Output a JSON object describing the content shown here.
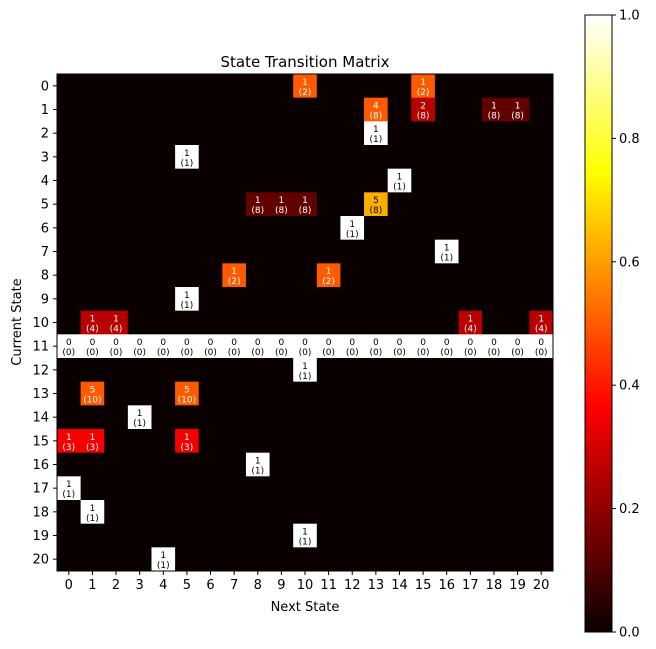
{
  "chart_data": {
    "type": "heatmap",
    "title": "State Transition Matrix",
    "xlabel": "Next State",
    "ylabel": "Current State",
    "x_categories": [
      "0",
      "1",
      "2",
      "3",
      "4",
      "5",
      "6",
      "7",
      "8",
      "9",
      "10",
      "11",
      "12",
      "13",
      "14",
      "15",
      "16",
      "17",
      "18",
      "19",
      "20"
    ],
    "y_categories": [
      "0",
      "1",
      "2",
      "3",
      "4",
      "5",
      "6",
      "7",
      "8",
      "9",
      "10",
      "11",
      "12",
      "13",
      "14",
      "15",
      "16",
      "17",
      "18",
      "19",
      "20"
    ],
    "colormap": "hot",
    "colorbar": {
      "min": 0.0,
      "max": 1.0,
      "ticks": [
        "0.0",
        "0.2",
        "0.4",
        "0.6",
        "0.8",
        "1.0"
      ]
    },
    "row_totals": [
      2,
      8,
      1,
      1,
      1,
      8,
      1,
      1,
      2,
      1,
      4,
      0,
      1,
      10,
      1,
      3,
      1,
      1,
      1,
      1,
      1
    ],
    "cells": [
      {
        "row": 0,
        "col": 10,
        "count": 1
      },
      {
        "row": 0,
        "col": 15,
        "count": 1
      },
      {
        "row": 1,
        "col": 13,
        "count": 4
      },
      {
        "row": 1,
        "col": 15,
        "count": 2
      },
      {
        "row": 1,
        "col": 18,
        "count": 1
      },
      {
        "row": 1,
        "col": 19,
        "count": 1
      },
      {
        "row": 2,
        "col": 13,
        "count": 1
      },
      {
        "row": 3,
        "col": 5,
        "count": 1
      },
      {
        "row": 4,
        "col": 14,
        "count": 1
      },
      {
        "row": 5,
        "col": 8,
        "count": 1
      },
      {
        "row": 5,
        "col": 9,
        "count": 1
      },
      {
        "row": 5,
        "col": 10,
        "count": 1
      },
      {
        "row": 5,
        "col": 13,
        "count": 5
      },
      {
        "row": 6,
        "col": 12,
        "count": 1
      },
      {
        "row": 7,
        "col": 16,
        "count": 1
      },
      {
        "row": 8,
        "col": 7,
        "count": 1
      },
      {
        "row": 8,
        "col": 11,
        "count": 1
      },
      {
        "row": 9,
        "col": 5,
        "count": 1
      },
      {
        "row": 10,
        "col": 1,
        "count": 1
      },
      {
        "row": 10,
        "col": 2,
        "count": 1
      },
      {
        "row": 10,
        "col": 17,
        "count": 1
      },
      {
        "row": 10,
        "col": 20,
        "count": 1
      },
      {
        "row": 12,
        "col": 10,
        "count": 1
      },
      {
        "row": 13,
        "col": 1,
        "count": 5
      },
      {
        "row": 13,
        "col": 5,
        "count": 5
      },
      {
        "row": 14,
        "col": 3,
        "count": 1
      },
      {
        "row": 15,
        "col": 0,
        "count": 1
      },
      {
        "row": 15,
        "col": 1,
        "count": 1
      },
      {
        "row": 15,
        "col": 5,
        "count": 1
      },
      {
        "row": 16,
        "col": 8,
        "count": 1
      },
      {
        "row": 17,
        "col": 0,
        "count": 1
      },
      {
        "row": 18,
        "col": 1,
        "count": 1
      },
      {
        "row": 19,
        "col": 10,
        "count": 1
      },
      {
        "row": 20,
        "col": 4,
        "count": 1
      }
    ],
    "zero_row_labels": [
      11
    ],
    "grid": false,
    "legend": "none"
  }
}
